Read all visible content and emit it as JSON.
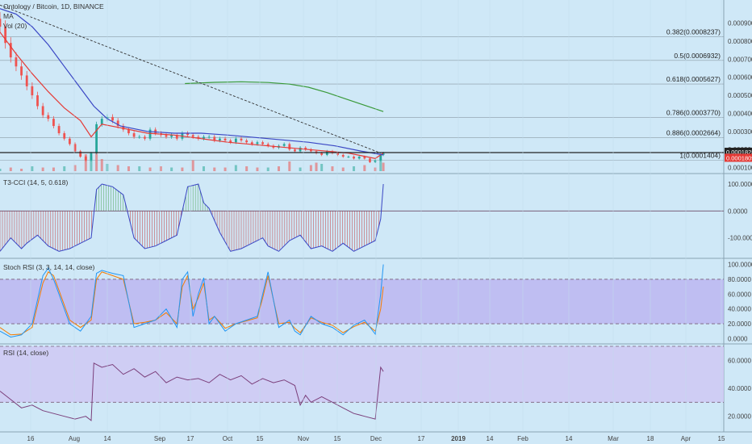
{
  "chart_data": {
    "type": "line",
    "x_ticks": [
      "16",
      "Aug",
      "14",
      "Sep",
      "17",
      "Oct",
      "15",
      "Nov",
      "15",
      "Dec",
      "17",
      "2019",
      "14",
      "Feb",
      "14",
      "Mar",
      "18",
      "Apr",
      "15"
    ],
    "main": {
      "title": "Ontology / Bitcoin, 1D, BINANCE",
      "indicators": [
        "MA",
        "Vol (20)"
      ],
      "ylim": [
        8e-05,
        0.00101
      ],
      "y_ticks": [
        "0.0009000",
        "0.0008000",
        "0.0007000",
        "0.0006000",
        "0.0005000",
        "0.0004000",
        "0.0003000",
        "0.0002000",
        "0.0001000"
      ],
      "fib_levels": [
        {
          "label": "0.382(0.0008237)",
          "value": 0.0008237
        },
        {
          "label": "0.5(0.0006932)",
          "value": 0.0006932
        },
        {
          "label": "0.618(0.0005627)",
          "value": 0.0005627
        },
        {
          "label": "0.786(0.0003770)",
          "value": 0.000377
        },
        {
          "label": "0.886(0.0002664)",
          "value": 0.0002664
        },
        {
          "label": "1(0.0001404)",
          "value": 0.0001404
        }
      ],
      "price_tags": [
        {
          "label": "0.0001828",
          "value": 0.0001828,
          "color": "#222222"
        },
        {
          "label": "0.0001809",
          "value": 0.0001809,
          "color": "#e53935"
        }
      ],
      "price_line_value": 0.0001828,
      "trendline": {
        "from": [
          0,
          0.001
        ],
        "to": [
          142,
          0.00018
        ]
      },
      "series": [
        {
          "color": "#e53935",
          "x": [
            0,
            6,
            12,
            18,
            24,
            30,
            34,
            38,
            45,
            55,
            65,
            75,
            85,
            100,
            115,
            130,
            140,
            143
          ],
          "values": [
            0.00085,
            0.00073,
            0.00062,
            0.00052,
            0.00043,
            0.00036,
            0.00027,
            0.00034,
            0.00032,
            0.00029,
            0.00028,
            0.00026,
            0.00024,
            0.00022,
            0.0002,
            0.00018,
            0.00015,
            0.00018
          ]
        },
        {
          "color": "#3a46c4",
          "x": [
            0,
            6,
            12,
            18,
            24,
            30,
            35,
            40,
            45,
            55,
            65,
            75,
            85,
            100,
            115,
            125,
            135,
            143
          ],
          "values": [
            0.00098,
            0.00095,
            0.00088,
            0.00078,
            0.00066,
            0.00054,
            0.00044,
            0.00037,
            0.00033,
            0.0003,
            0.00029,
            0.00029,
            0.00028,
            0.00026,
            0.00024,
            0.00022,
            0.00019,
            0.00017
          ]
        },
        {
          "color": "#3a9a3a",
          "x": [
            69,
            80,
            90,
            100,
            108,
            115,
            122,
            130,
            143
          ],
          "values": [
            0.000565,
            0.000572,
            0.000575,
            0.000571,
            0.000562,
            0.000545,
            0.000515,
            0.000475,
            0.00041
          ]
        }
      ],
      "candles_x": [
        0,
        2,
        4,
        6,
        8,
        10,
        12,
        14,
        16,
        18,
        20,
        22,
        24,
        26,
        28,
        30,
        32,
        34,
        36,
        38,
        40,
        42,
        44,
        46,
        48,
        50,
        52,
        54,
        56,
        58,
        60,
        62,
        64,
        66,
        68,
        70,
        72,
        74,
        76,
        78,
        80,
        82,
        84,
        86,
        88,
        90,
        92,
        94,
        96,
        98,
        100,
        102,
        104,
        106,
        108,
        110,
        112,
        114,
        116,
        118,
        120,
        122,
        124,
        126,
        128,
        130,
        132,
        134,
        136,
        138,
        140,
        142,
        143
      ],
      "candles_close": [
        0.00088,
        0.00079,
        0.00071,
        0.00066,
        0.00061,
        0.00055,
        0.0005,
        0.00044,
        0.00039,
        0.00037,
        0.00033,
        0.00029,
        0.00026,
        0.00023,
        0.00019,
        0.00016,
        0.00014,
        0.00018,
        0.00034,
        0.00037,
        0.00038,
        0.00036,
        0.00033,
        0.00031,
        0.00029,
        0.00027,
        0.00027,
        0.00026,
        0.00031,
        0.00029,
        0.00028,
        0.00027,
        0.00028,
        0.00026,
        0.00029,
        0.00028,
        0.00027,
        0.00026,
        0.00027,
        0.00027,
        0.00025,
        0.00026,
        0.00025,
        0.00024,
        0.00026,
        0.00025,
        0.00024,
        0.00023,
        0.00024,
        0.00023,
        0.00022,
        0.00021,
        0.00022,
        0.00023,
        0.0002,
        0.00019,
        0.00021,
        0.0002,
        0.00019,
        0.00018,
        0.00017,
        0.00019,
        0.00018,
        0.00017,
        0.00016,
        0.00016,
        0.00015,
        0.00016,
        0.00015,
        0.00013,
        0.00014,
        0.00017,
        0.00018
      ]
    },
    "volume": {
      "x": [
        0,
        4,
        8,
        12,
        16,
        20,
        24,
        28,
        32,
        34,
        36,
        38,
        40,
        44,
        48,
        52,
        56,
        60,
        64,
        68,
        72,
        76,
        80,
        84,
        88,
        92,
        96,
        100,
        104,
        108,
        112,
        116,
        118,
        120,
        124,
        128,
        132,
        136,
        140,
        142,
        143
      ],
      "values": [
        2,
        3,
        2,
        4,
        3,
        3,
        4,
        5,
        14,
        12,
        16,
        10,
        6,
        5,
        4,
        4,
        3,
        4,
        3,
        3,
        9,
        4,
        3,
        3,
        5,
        4,
        3,
        3,
        4,
        8,
        3,
        5,
        7,
        6,
        4,
        3,
        4,
        5,
        3,
        10,
        7
      ]
    },
    "cci": {
      "title": "T3-CCI (14, 5, 0.618)",
      "ylim": [
        -170,
        130
      ],
      "y_ticks": [
        100,
        0,
        -100
      ],
      "x": [
        0,
        4,
        8,
        10,
        14,
        18,
        22,
        26,
        30,
        34,
        36,
        38,
        42,
        46,
        50,
        54,
        58,
        62,
        66,
        70,
        74,
        76,
        78,
        82,
        86,
        90,
        94,
        98,
        100,
        104,
        108,
        112,
        116,
        120,
        124,
        128,
        132,
        136,
        140,
        142,
        143
      ],
      "values": [
        -150,
        -100,
        -140,
        -120,
        -90,
        -130,
        -150,
        -140,
        -120,
        -100,
        80,
        100,
        90,
        60,
        -100,
        -140,
        -130,
        -110,
        -90,
        90,
        100,
        30,
        10,
        -80,
        -150,
        -140,
        -120,
        -100,
        -130,
        -150,
        -110,
        -90,
        -140,
        -130,
        -150,
        -120,
        -150,
        -130,
        -110,
        -30,
        100
      ]
    },
    "stoch_rsi": {
      "title": "Stoch RSI (3, 3, 14, 14, close)",
      "ylim": [
        -5,
        105
      ],
      "band": [
        20,
        80
      ],
      "y_ticks": [
        100,
        80,
        60,
        40,
        20,
        0
      ],
      "k": {
        "color": "#2196f3",
        "x": [
          0,
          4,
          8,
          12,
          16,
          18,
          20,
          22,
          24,
          26,
          30,
          34,
          36,
          38,
          42,
          46,
          50,
          54,
          58,
          62,
          66,
          68,
          70,
          72,
          74,
          76,
          78,
          80,
          84,
          88,
          92,
          96,
          98,
          100,
          104,
          108,
          110,
          112,
          116,
          120,
          124,
          128,
          132,
          136,
          140,
          142,
          143
        ],
        "values": [
          10,
          2,
          5,
          20,
          85,
          95,
          80,
          60,
          40,
          20,
          10,
          30,
          88,
          92,
          88,
          85,
          15,
          20,
          25,
          40,
          15,
          80,
          90,
          30,
          60,
          82,
          20,
          30,
          10,
          20,
          25,
          30,
          60,
          90,
          15,
          25,
          10,
          5,
          30,
          20,
          15,
          5,
          18,
          25,
          6,
          60,
          100
        ]
      },
      "d": {
        "color": "#f57c00",
        "x": [
          0,
          4,
          8,
          12,
          16,
          18,
          20,
          22,
          24,
          26,
          30,
          34,
          36,
          38,
          42,
          46,
          50,
          54,
          58,
          62,
          66,
          68,
          70,
          72,
          74,
          76,
          78,
          80,
          84,
          88,
          92,
          96,
          98,
          100,
          104,
          108,
          110,
          112,
          116,
          120,
          124,
          128,
          132,
          136,
          140,
          142,
          143
        ],
        "values": [
          15,
          5,
          6,
          15,
          75,
          90,
          85,
          65,
          45,
          25,
          15,
          25,
          80,
          90,
          85,
          80,
          20,
          22,
          25,
          35,
          20,
          70,
          85,
          40,
          55,
          75,
          25,
          30,
          14,
          20,
          24,
          28,
          55,
          85,
          20,
          22,
          14,
          8,
          28,
          22,
          18,
          8,
          16,
          22,
          10,
          40,
          70
        ]
      }
    },
    "rsi": {
      "title": "RSI (14, close)",
      "ylim": [
        10,
        70
      ],
      "band": [
        30,
        70
      ],
      "y_ticks": [
        60,
        40,
        20
      ],
      "x": [
        0,
        4,
        8,
        12,
        16,
        20,
        24,
        28,
        32,
        34,
        35,
        38,
        42,
        46,
        50,
        54,
        58,
        62,
        66,
        70,
        74,
        78,
        82,
        86,
        90,
        94,
        98,
        102,
        106,
        110,
        112,
        114,
        116,
        120,
        124,
        128,
        132,
        134,
        136,
        140,
        142,
        143
      ],
      "values": [
        38,
        32,
        26,
        28,
        24,
        22,
        20,
        18,
        20,
        17,
        58,
        55,
        57,
        50,
        54,
        48,
        52,
        44,
        48,
        46,
        47,
        44,
        50,
        46,
        49,
        43,
        47,
        44,
        46,
        42,
        28,
        35,
        30,
        34,
        30,
        26,
        22,
        21,
        20,
        18,
        55,
        52
      ]
    }
  }
}
